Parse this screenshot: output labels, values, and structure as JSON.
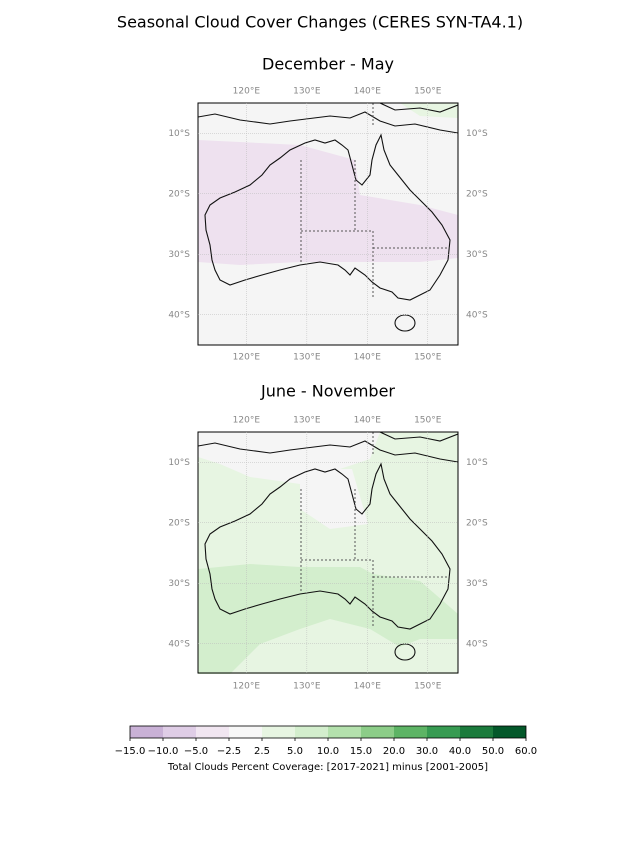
{
  "chart_data": {
    "type": "map",
    "title": "Seasonal Cloud Cover Changes  (CERES SYN-TA4.1)",
    "panels": [
      {
        "title": "December - May"
      },
      {
        "title": "June - November"
      }
    ],
    "xlim": [
      112,
      155
    ],
    "ylim": [
      -45,
      -5
    ],
    "xticks": [
      {
        "value": 120,
        "label": "120°E"
      },
      {
        "value": 130,
        "label": "130°E"
      },
      {
        "value": 140,
        "label": "140°E"
      },
      {
        "value": 150,
        "label": "150°E"
      }
    ],
    "yticks": [
      {
        "value": -10,
        "label": "10°S"
      },
      {
        "value": -20,
        "label": "20°S"
      },
      {
        "value": -30,
        "label": "30°S"
      },
      {
        "value": -40,
        "label": "40°S"
      }
    ],
    "grid": true,
    "colorbar": {
      "label": "Total Clouds Percent Coverage: [2017-2021] minus [2001-2005]",
      "ticks": [
        {
          "value": -15,
          "label": "−15.0"
        },
        {
          "value": -10,
          "label": "−10.0"
        },
        {
          "value": -5,
          "label": "−5.0"
        },
        {
          "value": -2.5,
          "label": "−2.5"
        },
        {
          "value": 2.5,
          "label": "2.5"
        },
        {
          "value": 5,
          "label": "5.0"
        },
        {
          "value": 10,
          "label": "10.0"
        },
        {
          "value": 15,
          "label": "15.0"
        },
        {
          "value": 20,
          "label": "20.0"
        },
        {
          "value": 30,
          "label": "30.0"
        },
        {
          "value": 40,
          "label": "40.0"
        },
        {
          "value": 50,
          "label": "50.0"
        },
        {
          "value": 60,
          "label": "60.0"
        }
      ],
      "colors": [
        "#c9b1d6",
        "#dfcde6",
        "#f1e6f1",
        "#f7f7f7",
        "#e7f5e2",
        "#d3eecd",
        "#b4e1ad",
        "#8ccd88",
        "#5db465",
        "#379b52",
        "#1b7b3c",
        "#03582a"
      ]
    }
  }
}
